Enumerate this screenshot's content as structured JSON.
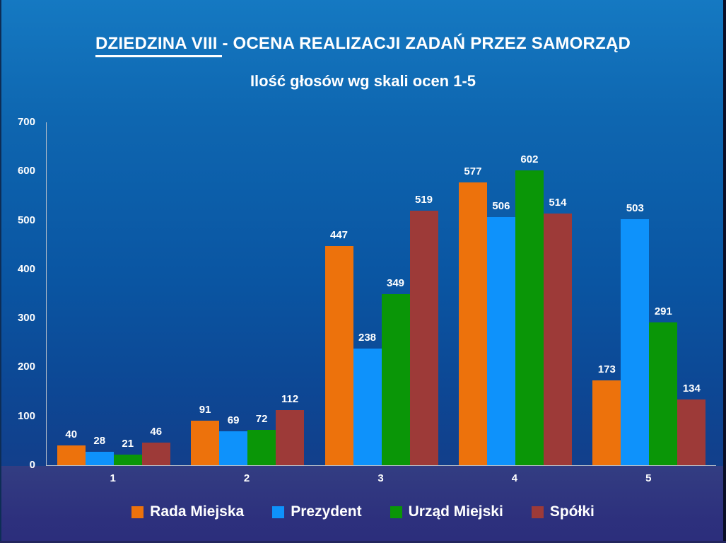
{
  "slide": {
    "title_part1": "DZIEDZINA VIII ",
    "title_part2": "- OCENA REALIZACJI ZADAŃ PRZEZ SAMORZĄD",
    "subtitle": "Ilość głosów wg skali ocen 1-5"
  },
  "chart_data": {
    "type": "bar",
    "title": "DZIEDZINA VIII - OCENA REALIZACJI ZADAŃ PRZEZ SAMORZĄD",
    "subtitle": "Ilość głosów wg skali ocen 1-5",
    "categories": [
      "1",
      "2",
      "3",
      "4",
      "5"
    ],
    "series": [
      {
        "name": "Rada Miejska",
        "color": "#ed720c",
        "values": [
          40,
          91,
          447,
          577,
          173
        ]
      },
      {
        "name": "Prezydent",
        "color": "#0e92fb",
        "values": [
          28,
          69,
          238,
          506,
          503
        ]
      },
      {
        "name": "Urząd Miejski",
        "color": "#0a9607",
        "values": [
          21,
          72,
          349,
          602,
          291
        ]
      },
      {
        "name": "Spółki",
        "color": "#9d3a38",
        "values": [
          46,
          112,
          519,
          514,
          134
        ]
      }
    ],
    "ylim": [
      0,
      700
    ],
    "yticks": [
      0,
      100,
      200,
      300,
      400,
      500,
      600,
      700
    ],
    "grid": false,
    "data_labels": true,
    "legend_position": "bottom",
    "axis_color": "#b9c0ca",
    "text_color": "#ffffff"
  },
  "colors": {
    "background_top": "#1579c2",
    "background_mid": "#0a55a2",
    "background_plot_bottom": "#123f8b",
    "bottom_band": "#2d307d",
    "axis_line": "#b9c0ca"
  }
}
